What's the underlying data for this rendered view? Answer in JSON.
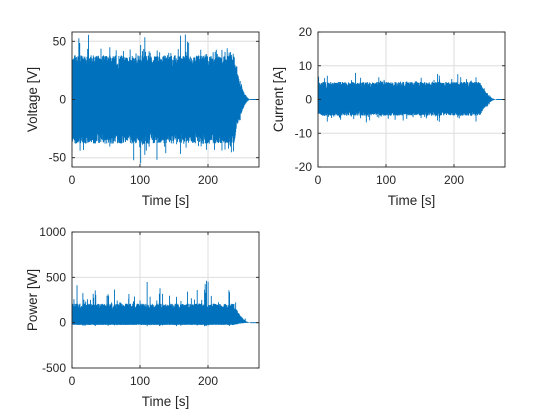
{
  "colors": {
    "series": "#0072bd",
    "axis": "#262626",
    "grid": "#dedede"
  },
  "chart_data": [
    {
      "type": "line",
      "id": "voltage",
      "title": "",
      "xlabel": "Time [s]",
      "ylabel": "Voltage [V]",
      "xlim": [
        0,
        275
      ],
      "ylim": [
        -58,
        58
      ],
      "xticks": [
        0,
        100,
        200
      ],
      "yticks": [
        -50,
        0,
        50
      ],
      "grid": true,
      "legend": "none",
      "envelope": {
        "t_end": 262,
        "decay_start": 238,
        "upper": 38,
        "lower": -38,
        "spike_upper": 56,
        "spike_lower": -55,
        "center": 0
      }
    },
    {
      "type": "line",
      "id": "current",
      "title": "",
      "xlabel": "Time [s]",
      "ylabel": "Current [A]",
      "xlim": [
        0,
        275
      ],
      "ylim": [
        -20,
        20
      ],
      "xticks": [
        0,
        100,
        200
      ],
      "yticks": [
        -20,
        -10,
        0,
        10,
        20
      ],
      "grid": true,
      "legend": "none",
      "envelope": {
        "t_end": 262,
        "decay_start": 238,
        "upper": 5.2,
        "lower": -4.8,
        "spike_upper": 8,
        "spike_lower": -7.5,
        "center": 0
      }
    },
    {
      "type": "line",
      "id": "power",
      "title": "",
      "xlabel": "Time [s]",
      "ylabel": "Power [W]",
      "xlim": [
        0,
        275
      ],
      "ylim": [
        -500,
        1000
      ],
      "xticks": [
        0,
        100,
        200
      ],
      "yticks": [
        -500,
        0,
        500,
        1000
      ],
      "grid": true,
      "legend": "none",
      "envelope": {
        "t_end": 262,
        "decay_start": 238,
        "upper": 210,
        "lower": -25,
        "spike_upper": 470,
        "spike_lower": -40,
        "center": 0
      }
    }
  ]
}
